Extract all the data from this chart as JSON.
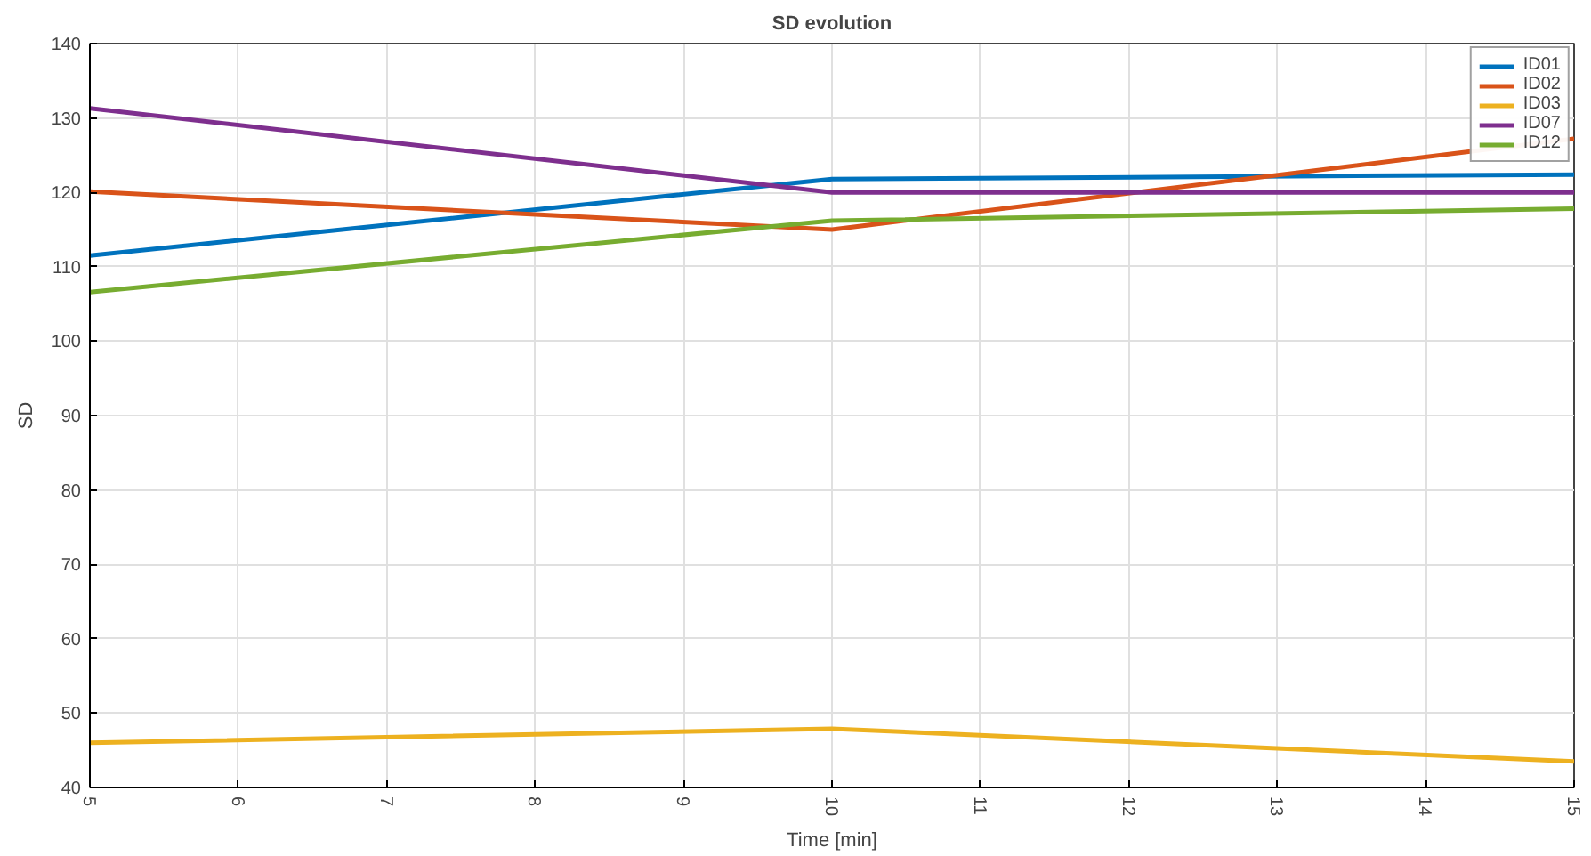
{
  "chart_data": {
    "type": "line",
    "title": "SD evolution",
    "xlabel": "Time [min]",
    "ylabel": "SD",
    "x": [
      5,
      10,
      15
    ],
    "series": [
      {
        "name": "ID01",
        "color": "#0072bd",
        "values": [
          111.5,
          121.8,
          122.4
        ]
      },
      {
        "name": "ID02",
        "color": "#d95319",
        "values": [
          120.1,
          115.0,
          127.2
        ]
      },
      {
        "name": "ID03",
        "color": "#edb120",
        "values": [
          46.0,
          47.9,
          43.5
        ]
      },
      {
        "name": "ID07",
        "color": "#7e2f8e",
        "values": [
          131.3,
          120.0,
          120.0
        ]
      },
      {
        "name": "ID12",
        "color": "#77ac30",
        "values": [
          106.6,
          116.2,
          117.8
        ]
      }
    ],
    "xlim": [
      5,
      15
    ],
    "xticks": [
      5,
      6,
      7,
      8,
      9,
      10,
      11,
      12,
      13,
      14,
      15
    ],
    "ylim": [
      40,
      140
    ],
    "yticks": [
      40,
      50,
      60,
      70,
      80,
      90,
      100,
      110,
      120,
      130,
      140
    ],
    "grid": true,
    "legend": "top right",
    "marker": "none",
    "line_style": "solid"
  }
}
